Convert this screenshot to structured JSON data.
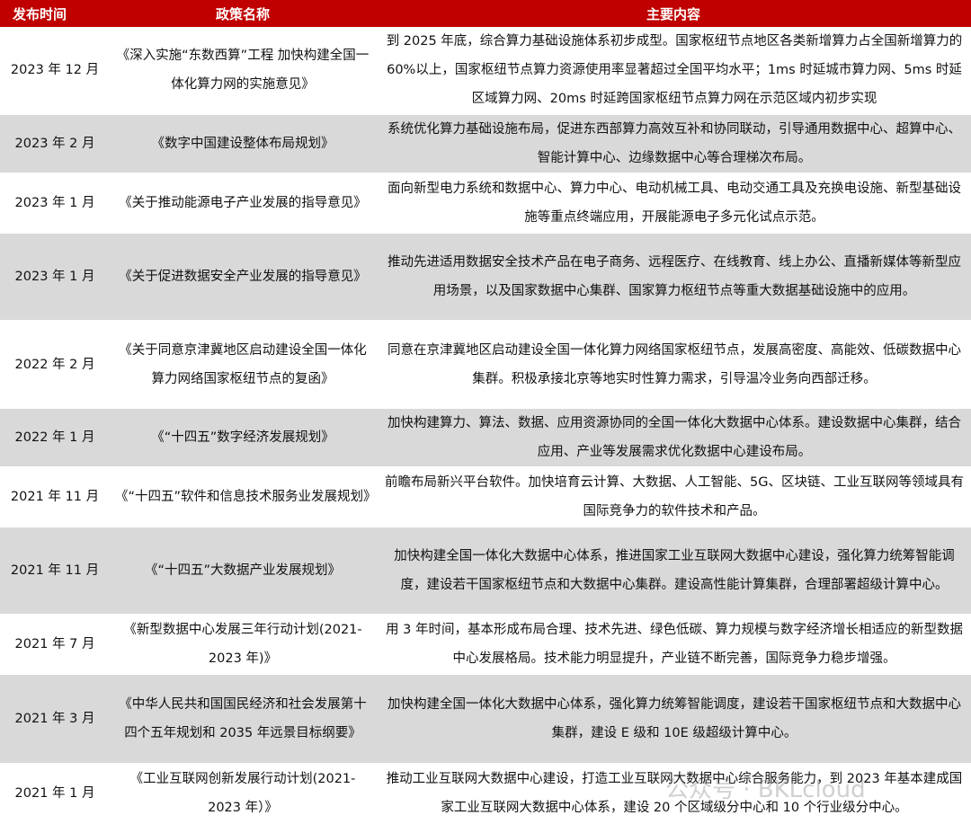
{
  "header": {
    "date": "发布时间",
    "name": "政策名称",
    "content": "主要内容"
  },
  "colors": {
    "header_bg": "#c00000",
    "shade_bg": "#d9d9d9"
  },
  "rows": [
    {
      "date": "2023 年 12 月",
      "name": "《深入实施“东数西算”工程 加快构建全国一体化算力网的实施意见》",
      "content": "到 2025 年底，综合算力基础设施体系初步成型。国家枢纽节点地区各类新增算力占全国新增算力的 60%以上，国家枢纽节点算力资源使用率显著超过全国平均水平；1ms 时延城市算力网、5ms 时延区域算力网、20ms 时延跨国家枢纽节点算力网在示范区域内初步实现"
    },
    {
      "date": "2023 年 2 月",
      "name": "《数字中国建设整体布局规划》",
      "content": "系统优化算力基础设施布局，促进东西部算力高效互补和协同联动，引导通用数据中心、超算中心、智能计算中心、边缘数据中心等合理梯次布局。"
    },
    {
      "date": "2023 年 1 月",
      "name": "《关于推动能源电子产业发展的指导意见》",
      "content": "面向新型电力系统和数据中心、算力中心、电动机械工具、电动交通工具及充换电设施、新型基础设施等重点终端应用，开展能源电子多元化试点示范。"
    },
    {
      "date": "2023 年 1 月",
      "name": "《关于促进数据安全产业发展的指导意见》",
      "content": "推动先进适用数据安全技术产品在电子商务、远程医疗、在线教育、线上办公、直播新媒体等新型应用场景，以及国家数据中心集群、国家算力枢纽节点等重大数据基础设施中的应用。"
    },
    {
      "date": "2022 年 2 月",
      "name": "《关于同意京津冀地区启动建设全国一体化算力网络国家枢纽节点的复函》",
      "content": "同意在京津冀地区启动建设全国一体化算力网络国家枢纽节点，发展高密度、高能效、低碳数据中心集群。积极承接北京等地实时性算力需求，引导温冷业务向西部迁移。"
    },
    {
      "date": "2022 年 1 月",
      "name": "《“十四五”数字经济发展规划》",
      "content": "加快构建算力、算法、数据、应用资源协同的全国一体化大数据中心体系。建设数据中心集群，结合应用、产业等发展需求优化数据中心建设布局。"
    },
    {
      "date": "2021 年 11 月",
      "name": "《“十四五”软件和信息技术服务业发展规划》",
      "content": "前瞻布局新兴平台软件。加快培育云计算、大数据、人工智能、5G、区块链、工业互联网等领域具有国际竞争力的软件技术和产品。"
    },
    {
      "date": "2021 年 11 月",
      "name": "《“十四五”大数据产业发展规划》",
      "content": "加快构建全国一体化大数据中心体系，推进国家工业互联网大数据中心建设，强化算力统筹智能调度，建设若干国家枢纽节点和大数据中心集群。建设高性能计算集群，合理部署超级计算中心。"
    },
    {
      "date": "2021 年 7 月",
      "name": "《新型数据中心发展三年行动计划(2021-2023 年)》",
      "content": "用 3 年时间，基本形成布局合理、技术先进、绿色低碳、算力规模与数字经济增长相适应的新型数据中心发展格局。技术能力明显提升，产业链不断完善，国际竞争力稳步增强。"
    },
    {
      "date": "2021 年 3 月",
      "name": "《中华人民共和国国民经济和社会发展第十四个五年规划和 2035 年远景目标纲要》",
      "content": "加快构建全国一体化大数据中心体系，强化算力统筹智能调度，建设若干国家枢纽节点和大数据中心集群，建设 E 级和 10E 级超级计算中心。"
    },
    {
      "date": "2021 年 1 月",
      "name": "《工业互联网创新发展行动计划(2021-2023 年）》",
      "content": "推动工业互联网大数据中心建设，打造工业互联网大数据中心综合服务能力，到 2023 年基本建成国家工业互联网大数据中心体系，建设 20 个区域级分中心和 10 个行业级分中心。"
    }
  ],
  "watermark": "公众号 · BKLcloud"
}
